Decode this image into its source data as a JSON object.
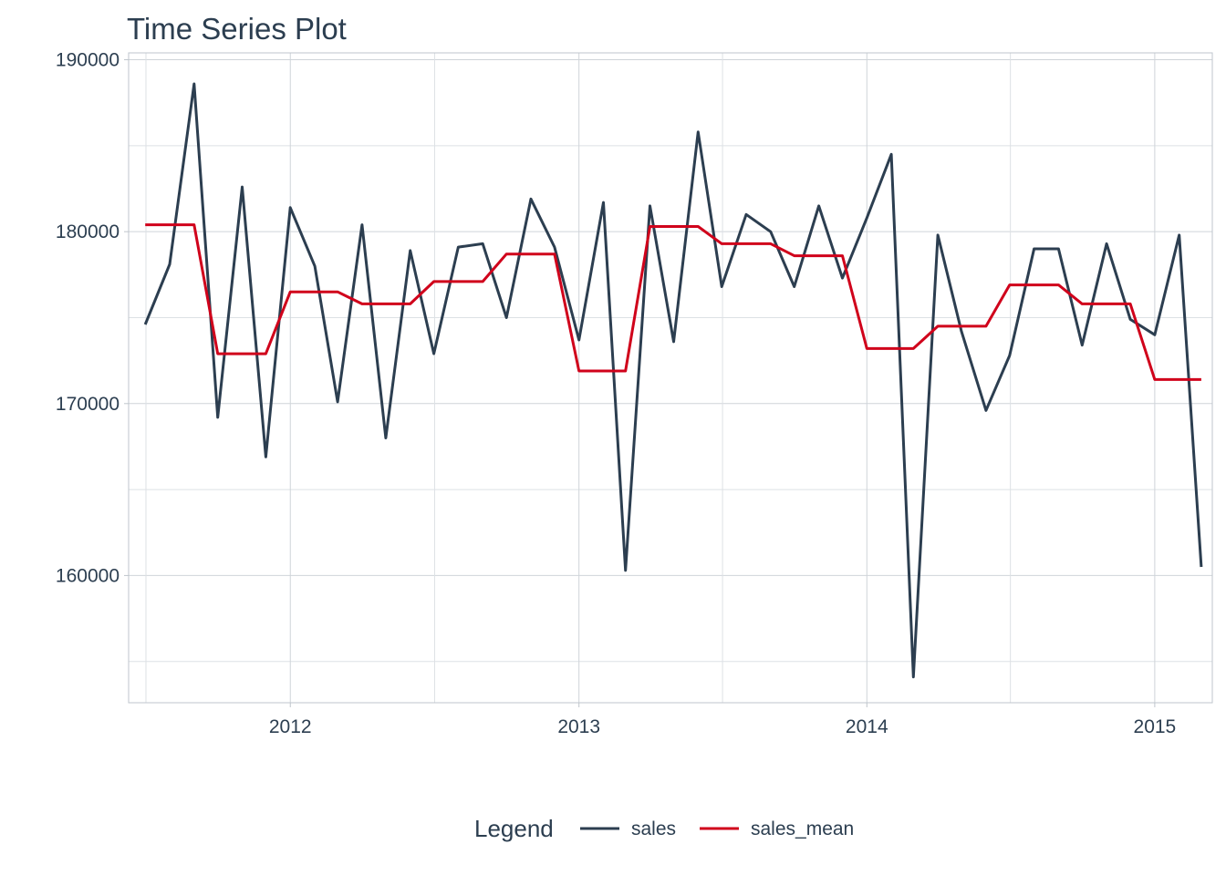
{
  "chart_data": {
    "type": "line",
    "title": "Time Series Plot",
    "xlabel": "",
    "ylabel": "",
    "x_tick_labels": [
      "2012",
      "2013",
      "2014",
      "2015"
    ],
    "y_tick_labels": [
      "160000",
      "170000",
      "180000",
      "190000"
    ],
    "xlim": [
      "2011-06-10",
      "2015-03-15"
    ],
    "ylim": [
      152600,
      190400
    ],
    "grid": true,
    "legend": {
      "title": "Legend",
      "position": "bottom",
      "entries": [
        "sales",
        "sales_mean"
      ]
    },
    "x": [
      "2011-07",
      "2011-08",
      "2011-09",
      "2011-10",
      "2011-11",
      "2011-12",
      "2012-01",
      "2012-02",
      "2012-03",
      "2012-04",
      "2012-05",
      "2012-06",
      "2012-07",
      "2012-08",
      "2012-09",
      "2012-10",
      "2012-11",
      "2012-12",
      "2013-01",
      "2013-02",
      "2013-03",
      "2013-04",
      "2013-05",
      "2013-06",
      "2013-07",
      "2013-08",
      "2013-09",
      "2013-10",
      "2013-11",
      "2013-12",
      "2014-01",
      "2014-02",
      "2014-03",
      "2014-04",
      "2014-05",
      "2014-06",
      "2014-07",
      "2014-08",
      "2014-09",
      "2014-10",
      "2014-11",
      "2014-12",
      "2015-01",
      "2015-02",
      "2015-03"
    ],
    "series": [
      {
        "name": "sales",
        "color": "#2c3e50",
        "values": [
          174600,
          178100,
          188600,
          169200,
          182600,
          166900,
          181400,
          178000,
          170100,
          180400,
          168000,
          178900,
          172900,
          179100,
          179300,
          175000,
          181900,
          179100,
          173700,
          181700,
          160300,
          181500,
          173600,
          185800,
          176800,
          181000,
          180000,
          176800,
          181500,
          177300,
          180800,
          184500,
          154100,
          179800,
          174200,
          169600,
          172800,
          179000,
          179000,
          173400,
          179300,
          174900,
          174000,
          179800,
          160500
        ]
      },
      {
        "name": "sales_mean",
        "color": "#d0021b",
        "values": [
          180400,
          180400,
          180400,
          172900,
          172900,
          172900,
          176500,
          176500,
          176500,
          175800,
          175800,
          175800,
          177100,
          177100,
          177100,
          178700,
          178700,
          178700,
          171900,
          171900,
          171900,
          180300,
          180300,
          180300,
          179300,
          179300,
          179300,
          178600,
          178600,
          178600,
          173200,
          173200,
          173200,
          174500,
          174500,
          174500,
          176900,
          176900,
          176900,
          175800,
          175800,
          175800,
          171400,
          171400,
          171400
        ]
      }
    ]
  }
}
